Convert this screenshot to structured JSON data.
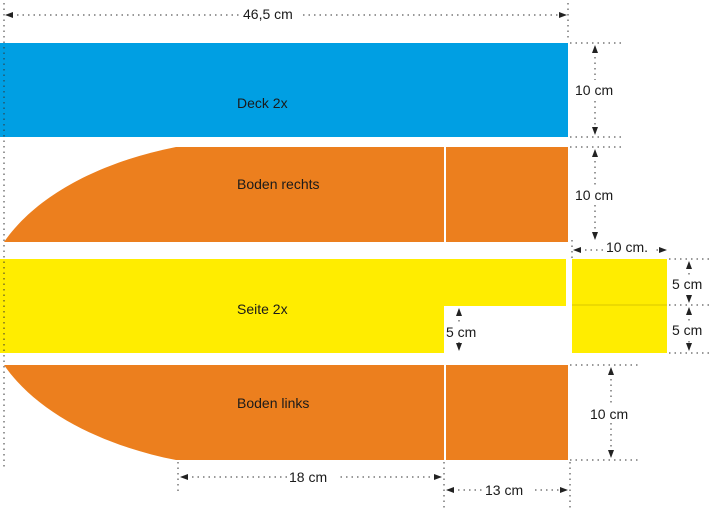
{
  "colors": {
    "deck": "#009fe3",
    "boden": "#ec7f1e",
    "seite": "#ffed00",
    "line": "#333333"
  },
  "pieces": {
    "deck": "Deck 2x",
    "boden_rechts": "Boden rechts",
    "seite": "Seite 2x",
    "boden_links": "Boden links"
  },
  "dimensions": {
    "total_width": "46,5 cm",
    "deck_height": "10 cm",
    "boden_rechts_height": "10 cm",
    "side_piece_width": "10 cm.",
    "side_piece_upper": "5 cm",
    "side_piece_lower": "5 cm",
    "notch_height": "5 cm",
    "boden_links_height": "10 cm",
    "curve_length": "18 cm",
    "straight_length": "13 cm"
  }
}
